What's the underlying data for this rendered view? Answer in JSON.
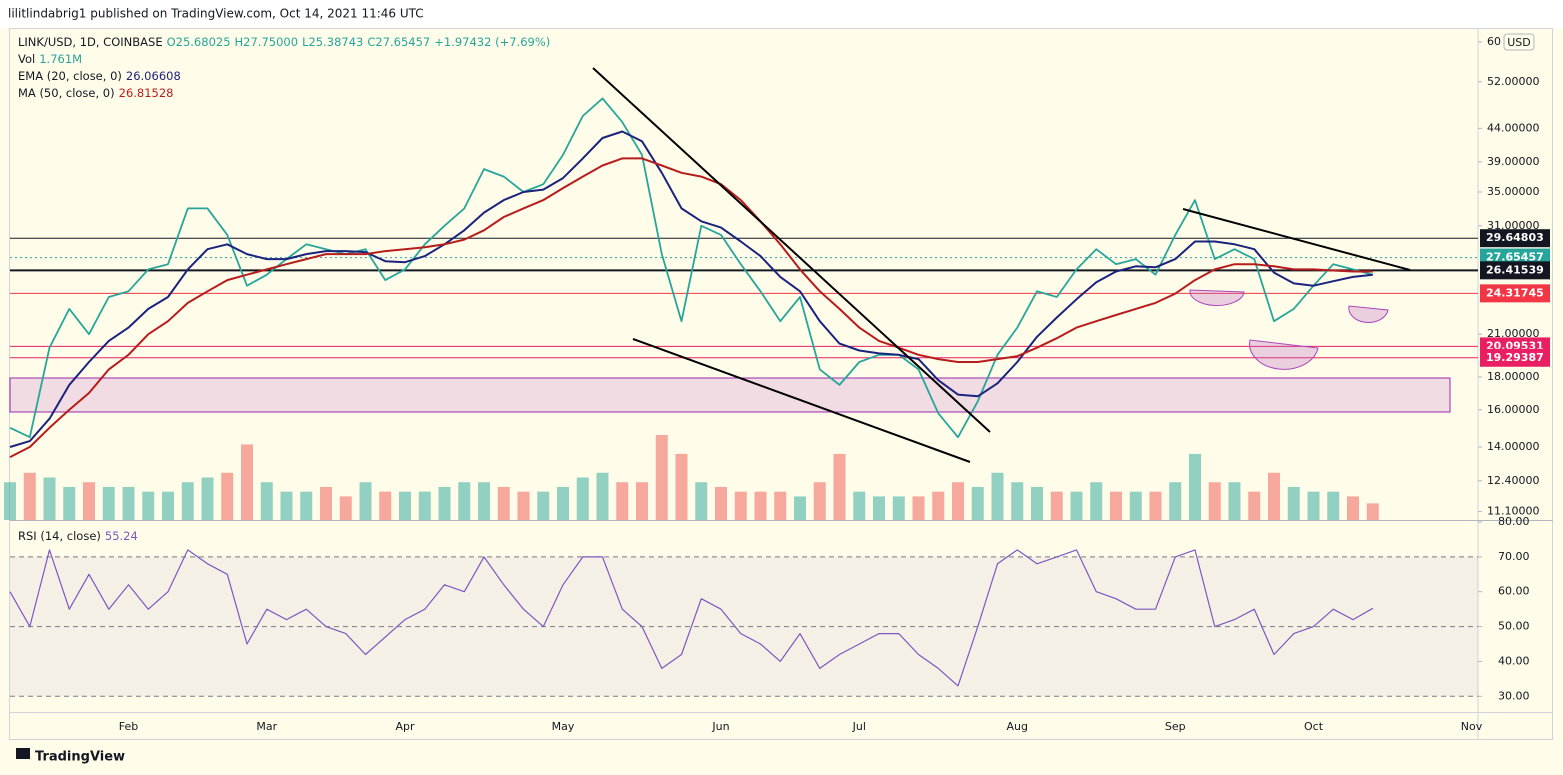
{
  "header": {
    "published": "lilitlindabrig1 published on TradingView.com, Oct 14, 2021 11:46 UTC"
  },
  "chart_data": {
    "type": "line",
    "log_scale": true,
    "currency": "USD",
    "ohlc": [
      "O25.68025",
      "H27.75000",
      "L25.38743",
      "C27.65457"
    ],
    "change": "+1.97432 (+7.69%)",
    "categories": [
      null,
      null,
      null,
      null,
      null,
      null,
      "Feb",
      null,
      null,
      null,
      null,
      null,
      null,
      "Mar",
      null,
      null,
      null,
      null,
      null,
      null,
      "Apr",
      null,
      null,
      null,
      null,
      null,
      null,
      null,
      "May",
      null,
      null,
      null,
      null,
      null,
      null,
      null,
      "Jun",
      null,
      null,
      null,
      null,
      null,
      null,
      "Jul",
      null,
      null,
      null,
      null,
      null,
      null,
      null,
      "Aug",
      null,
      null,
      null,
      null,
      null,
      null,
      null,
      "Sep",
      null,
      null,
      null,
      null,
      null,
      null,
      "Oct",
      null,
      null,
      null,
      null,
      null,
      null,
      null,
      "Nov",
      null
    ],
    "series": [
      {
        "name": "LINK/USD, 1D, COINBASE",
        "color": "#26a69a",
        "values": [
          15.0,
          14.5,
          20.0,
          23.0,
          21.0,
          24.0,
          24.5,
          26.5,
          27.0,
          33.0,
          33.0,
          30.0,
          25.0,
          26.0,
          27.5,
          29.0,
          28.5,
          28.0,
          28.5,
          25.5,
          26.5,
          29.0,
          31.0,
          33.0,
          38.0,
          37.0,
          35.0,
          36.0,
          40.0,
          46.0,
          49.0,
          45.0,
          40.0,
          28.0,
          22.0,
          31.0,
          30.0,
          27.0,
          24.5,
          22.0,
          24.0,
          18.5,
          17.5,
          19.0,
          19.5,
          19.5,
          18.5,
          15.8,
          14.5,
          16.5,
          19.5,
          21.5,
          24.5,
          24.0,
          26.5,
          28.5,
          27.0,
          27.5,
          26.0,
          30.0,
          34.0,
          27.5,
          28.5,
          27.5,
          22.0,
          23.0,
          25.0,
          27.0,
          26.5,
          26.0,
          null,
          null,
          null,
          null,
          null,
          null
        ]
      },
      {
        "name": "EMA (20, close, 0)",
        "color": "#1a237e",
        "last": 26.06608,
        "values": [
          14.0,
          14.3,
          15.5,
          17.5,
          19.0,
          20.5,
          21.5,
          23.0,
          24.0,
          26.5,
          28.5,
          29.0,
          28.0,
          27.5,
          27.5,
          28.0,
          28.3,
          28.3,
          28.2,
          27.3,
          27.2,
          27.8,
          29.0,
          30.5,
          32.5,
          34.0,
          35.0,
          35.3,
          36.8,
          39.5,
          42.5,
          43.5,
          42.0,
          37.5,
          33.0,
          31.5,
          30.8,
          29.3,
          27.8,
          25.8,
          24.5,
          22.0,
          20.3,
          19.8,
          19.6,
          19.5,
          19.2,
          17.8,
          16.9,
          16.8,
          17.6,
          19.0,
          20.8,
          22.3,
          23.8,
          25.3,
          26.3,
          26.8,
          26.7,
          27.5,
          29.3,
          29.3,
          29.0,
          28.5,
          26.2,
          25.2,
          25.0,
          25.4,
          25.8,
          26.0,
          null,
          null,
          null,
          null,
          null,
          null
        ]
      },
      {
        "name": "MA (50, close, 0)",
        "color": "#b71c1c",
        "last": 26.81528,
        "values": [
          13.5,
          14,
          15,
          16,
          17,
          18.5,
          19.5,
          21,
          22,
          23.5,
          24.5,
          25.5,
          26,
          26.5,
          27,
          27.5,
          28,
          28,
          28,
          28.3,
          28.5,
          28.7,
          29,
          29.5,
          30.5,
          32,
          33,
          34,
          35.5,
          37,
          38.5,
          39.5,
          39.5,
          38.5,
          37.5,
          37,
          36,
          34,
          31.5,
          29,
          26.5,
          24.5,
          23,
          21.5,
          20.5,
          20,
          19.5,
          19.2,
          19.0,
          19.0,
          19.2,
          19.4,
          20,
          20.7,
          21.5,
          22,
          22.5,
          23,
          23.5,
          24.3,
          25.5,
          26.5,
          27,
          27,
          26.8,
          26.5,
          26.5,
          26.4,
          26.3,
          26.3,
          null,
          null,
          null,
          null,
          null,
          null
        ]
      }
    ],
    "volume": {
      "name": "Vol",
      "value_label": "1.761M",
      "up_color": "#26a69a",
      "down_color": "#ef5350",
      "values": [
        4,
        5,
        4.5,
        3.5,
        4,
        3.5,
        3.5,
        3,
        3,
        4,
        4.5,
        5,
        8,
        4,
        3,
        3,
        3.5,
        2.5,
        4,
        3,
        3,
        3,
        3.5,
        4,
        4,
        3.5,
        3,
        3,
        3.5,
        4.5,
        5,
        4,
        4,
        9,
        7,
        4,
        3.5,
        3,
        3,
        3,
        2.5,
        4,
        7,
        3,
        2.5,
        2.5,
        2.5,
        3,
        4,
        3.5,
        5,
        4,
        3.5,
        3,
        3,
        4,
        3,
        3,
        3,
        4,
        7,
        4,
        4,
        3,
        5,
        3.5,
        3,
        3,
        2.5,
        1.761,
        null,
        null,
        null,
        null,
        null,
        null
      ]
    },
    "ylim": [
      10.77,
      63.1
    ],
    "yticks": [
      60,
      {
        "value": 52,
        "label": "52.00000"
      },
      {
        "value": 44,
        "label": "44.00000"
      },
      {
        "value": 39,
        "label": "39.00000"
      },
      {
        "value": 35,
        "label": "35.00000"
      },
      {
        "value": 31,
        "label": "31.00000"
      },
      {
        "value": 21,
        "label": "21.00000"
      },
      {
        "value": 18,
        "label": "18.00000"
      },
      {
        "value": 16,
        "label": "16.00000"
      },
      {
        "value": 14,
        "label": "14.00000"
      },
      {
        "value": 12.4,
        "label": "12.40000"
      },
      {
        "value": 11.1,
        "label": "11.10000"
      }
    ],
    "levels": [
      {
        "value": 29.64803,
        "color": "#131722"
      },
      {
        "value": 27.65457,
        "color": "#26a69a"
      },
      {
        "value": 26.41539,
        "color": "#131722"
      },
      {
        "value": 24.31745,
        "color": "#f23645"
      },
      {
        "value": 20.09531,
        "color": "#e91e63"
      },
      {
        "value": 19.29387,
        "color": "#e91e63"
      }
    ],
    "rsi": {
      "name": "RSI (14, close)",
      "color": "#7e57c2",
      "ylim": [
        25.5,
        80
      ],
      "yticks": [
        {
          "value": 80,
          "label": "80.00"
        },
        {
          "value": 70,
          "label": "70.00"
        },
        {
          "value": 60,
          "label": "60.00"
        },
        {
          "value": 50,
          "label": "50.00"
        },
        {
          "value": 40,
          "label": "40.00"
        },
        {
          "value": 30,
          "label": "30.00"
        }
      ],
      "band": [
        30,
        70
      ],
      "dashed": [
        70,
        50,
        30
      ],
      "values": [
        60,
        50,
        72,
        55,
        65,
        55,
        62,
        55,
        60,
        72,
        68,
        65,
        45,
        55,
        52,
        55,
        50,
        48,
        42,
        47,
        52,
        55,
        62,
        60,
        70,
        62,
        55,
        50,
        62,
        70,
        70,
        55,
        50,
        38,
        42,
        58,
        55,
        48,
        45,
        40,
        48,
        38,
        42,
        45,
        48,
        48,
        42,
        38,
        33,
        50,
        68,
        72,
        68,
        70,
        72,
        60,
        58,
        55,
        55,
        70,
        72,
        50,
        52,
        55,
        42,
        48,
        50,
        55,
        52,
        55.24,
        null,
        null,
        null,
        null,
        null,
        null
      ]
    }
  },
  "footer": {
    "brand": "TradingView"
  }
}
